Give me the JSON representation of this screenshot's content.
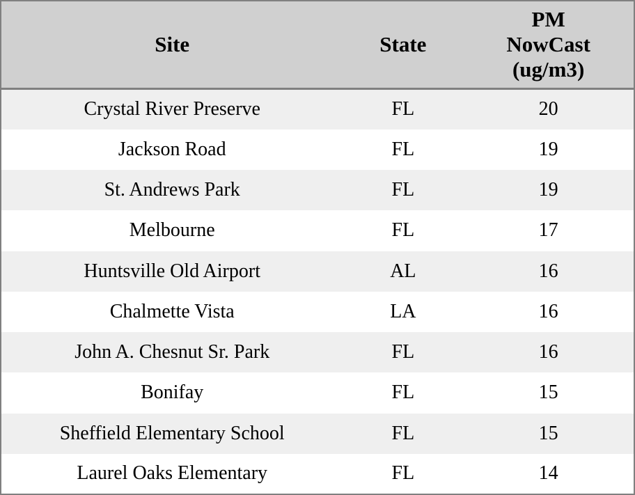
{
  "chart_data": {
    "type": "table",
    "columns": [
      "Site",
      "State",
      "PM NowCast (ug/m3)"
    ],
    "rows": [
      {
        "site": "Crystal River Preserve",
        "state": "FL",
        "pm_nowcast": "20"
      },
      {
        "site": "Jackson Road",
        "state": "FL",
        "pm_nowcast": "19"
      },
      {
        "site": "St. Andrews Park",
        "state": "FL",
        "pm_nowcast": "19"
      },
      {
        "site": "Melbourne",
        "state": "FL",
        "pm_nowcast": "17"
      },
      {
        "site": "Huntsville Old Airport",
        "state": "AL",
        "pm_nowcast": "16"
      },
      {
        "site": "Chalmette Vista",
        "state": "LA",
        "pm_nowcast": "16"
      },
      {
        "site": "John A. Chesnut Sr. Park",
        "state": "FL",
        "pm_nowcast": "16"
      },
      {
        "site": "Bonifay",
        "state": "FL",
        "pm_nowcast": "15"
      },
      {
        "site": "Sheffield Elementary School",
        "state": "FL",
        "pm_nowcast": "15"
      },
      {
        "site": "Laurel Oaks Elementary",
        "state": "FL",
        "pm_nowcast": "14"
      }
    ]
  },
  "colors": {
    "border": "#808080",
    "header_bg": "#d0d0d0",
    "stripe": "#efefef",
    "row_bg": "#ffffff",
    "text": "#000000"
  }
}
